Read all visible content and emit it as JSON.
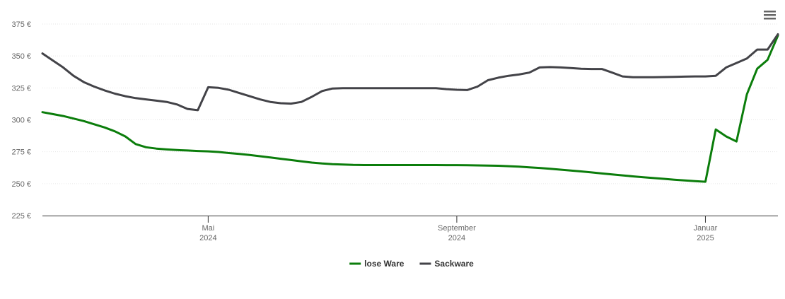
{
  "chart_data": {
    "type": "line",
    "categories": [
      null,
      null,
      null,
      null,
      null,
      null,
      null,
      null,
      null,
      null,
      null,
      null,
      null,
      null,
      null,
      null,
      [
        "Mai",
        "2024"
      ],
      null,
      null,
      null,
      null,
      null,
      null,
      null,
      null,
      null,
      null,
      null,
      null,
      null,
      null,
      null,
      null,
      null,
      null,
      null,
      null,
      null,
      null,
      null,
      [
        "September",
        "2024"
      ],
      null,
      null,
      null,
      null,
      null,
      null,
      null,
      null,
      null,
      null,
      null,
      null,
      null,
      null,
      null,
      null,
      null,
      null,
      null,
      null,
      null,
      null,
      null,
      [
        "Januar",
        "2025"
      ],
      null,
      null,
      null,
      null,
      null,
      null,
      null
    ],
    "series": [
      {
        "name": "lose Ware",
        "color": "#0b7d0b",
        "values": [
          306,
          304.5,
          303,
          301,
          299,
          296.5,
          294,
          291,
          287,
          281,
          278.5,
          277.5,
          276.8,
          276.3,
          276,
          275.6,
          275.3,
          274.8,
          274,
          273.3,
          272.5,
          271.5,
          270.5,
          269.5,
          268.5,
          267.5,
          266.5,
          265.8,
          265.3,
          265,
          264.7,
          264.6,
          264.6,
          264.6,
          264.6,
          264.6,
          264.6,
          264.6,
          264.6,
          264.5,
          264.5,
          264.4,
          264.3,
          264.2,
          264,
          263.7,
          263.3,
          262.8,
          262.3,
          261.7,
          261,
          260.3,
          259.6,
          258.8,
          258,
          257.2,
          256.5,
          255.7,
          255,
          254.4,
          253.8,
          253.1,
          252.5,
          252,
          251.5,
          292.5,
          287,
          283,
          320,
          340,
          347,
          366
        ]
      },
      {
        "name": "Sackware",
        "color": "#434348",
        "values": [
          352,
          346.5,
          341,
          334.5,
          329.5,
          326,
          323,
          320.5,
          318.5,
          317,
          316,
          315,
          314,
          312,
          308.5,
          307.5,
          325.5,
          325,
          323.5,
          321,
          318.5,
          316,
          314,
          313,
          312.7,
          314,
          318,
          322.5,
          324.5,
          324.8,
          324.8,
          324.8,
          324.8,
          324.8,
          324.8,
          324.8,
          324.8,
          324.8,
          324.8,
          324,
          323.5,
          323.3,
          326,
          331,
          333,
          334.5,
          335.5,
          337,
          341,
          341.3,
          341,
          340.5,
          340,
          339.8,
          339.8,
          337,
          334,
          333.3,
          333.3,
          333.4,
          333.5,
          333.6,
          333.8,
          334,
          334,
          334.5,
          341,
          344.5,
          348,
          355,
          355,
          367
        ]
      }
    ],
    "ylim": [
      225,
      375
    ],
    "yticks": [
      {
        "value": 225,
        "label": "225 €"
      },
      {
        "value": 250,
        "label": "250 €"
      },
      {
        "value": 275,
        "label": "275 €"
      },
      {
        "value": 300,
        "label": "300 €"
      },
      {
        "value": 325,
        "label": "325 €"
      },
      {
        "value": 350,
        "label": "350 €"
      },
      {
        "value": 375,
        "label": "375 €"
      }
    ],
    "grid": true,
    "legend": "bottom"
  }
}
